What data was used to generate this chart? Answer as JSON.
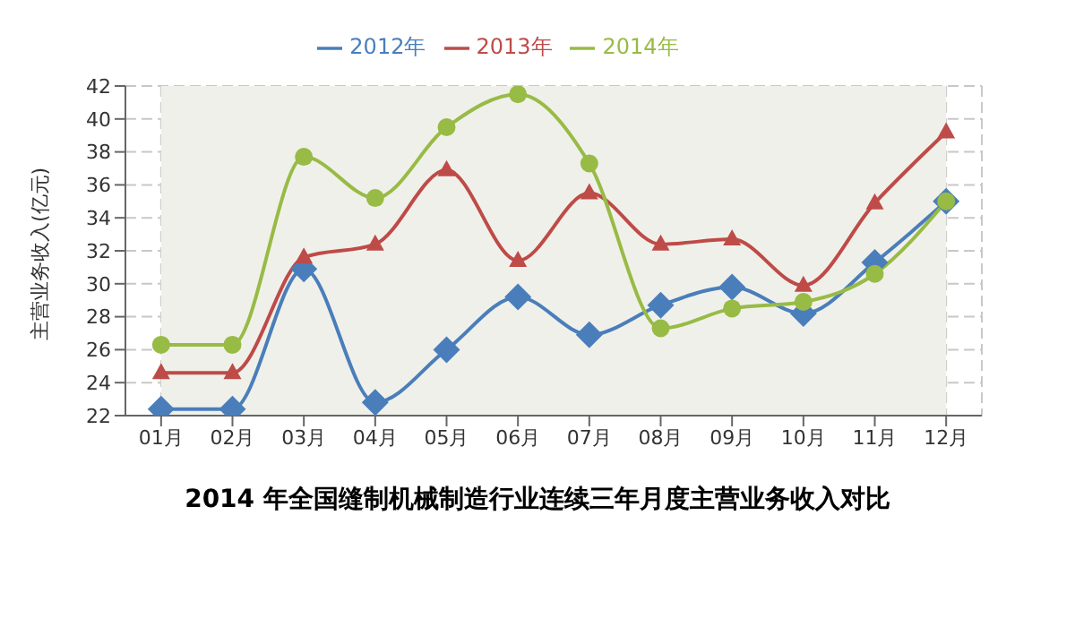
{
  "chart_data": {
    "type": "line",
    "title": "2014 年全国缝制机械制造行业连续三年月度主营业务收入对比",
    "ylabel": "主营业务收入(亿元)",
    "categories": [
      "01月",
      "02月",
      "03月",
      "04月",
      "05月",
      "06月",
      "07月",
      "08月",
      "09月",
      "10月",
      "11月",
      "12月"
    ],
    "series": [
      {
        "name": "2012年",
        "color": "#4a7ebb",
        "marker": "diamond",
        "values": [
          22.4,
          22.4,
          30.9,
          22.8,
          26.0,
          29.2,
          26.9,
          28.7,
          29.8,
          28.2,
          31.3,
          35.0
        ]
      },
      {
        "name": "2013年",
        "color": "#be4b48",
        "marker": "triangle",
        "values": [
          24.6,
          24.6,
          31.6,
          32.4,
          36.9,
          31.4,
          35.5,
          32.4,
          32.7,
          29.9,
          34.9,
          39.2
        ]
      },
      {
        "name": "2014年",
        "color": "#98bb45",
        "marker": "circle",
        "values": [
          26.3,
          26.3,
          37.7,
          35.2,
          39.5,
          41.5,
          37.3,
          27.3,
          28.5,
          28.9,
          30.6,
          35.0
        ]
      }
    ],
    "ylim": [
      22,
      42
    ],
    "yticks": [
      22,
      24,
      26,
      28,
      30,
      32,
      34,
      36,
      38,
      40,
      42
    ],
    "grid": true,
    "legend": "top"
  }
}
